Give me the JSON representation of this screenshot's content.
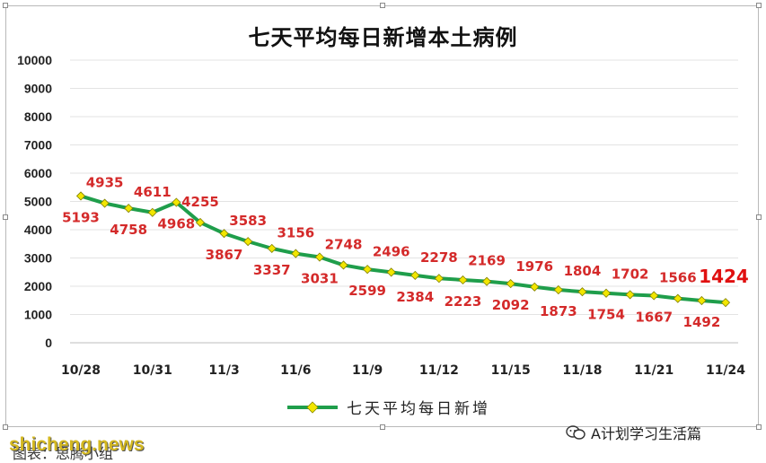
{
  "chart_data": {
    "type": "line",
    "title": "七天平均每日新增本土病例",
    "xlabel": "",
    "ylabel": "",
    "ylim": [
      0,
      10000
    ],
    "yticks": [
      0,
      1000,
      2000,
      3000,
      4000,
      5000,
      6000,
      7000,
      8000,
      9000,
      10000
    ],
    "grid": true,
    "legend_position": "bottom",
    "x_tick_labels": [
      "10/28",
      "10/31",
      "11/3",
      "11/6",
      "11/9",
      "11/12",
      "11/15",
      "11/18",
      "11/21",
      "11/24"
    ],
    "x": [
      "10/28",
      "10/29",
      "10/30",
      "10/31",
      "11/1",
      "11/2",
      "11/3",
      "11/4",
      "11/5",
      "11/6",
      "11/7",
      "11/8",
      "11/9",
      "11/10",
      "11/11",
      "11/12",
      "11/13",
      "11/14",
      "11/15",
      "11/16",
      "11/17",
      "11/18",
      "11/19",
      "11/20",
      "11/21",
      "11/22",
      "11/23",
      "11/24"
    ],
    "series": [
      {
        "name": "七天平均每日新增",
        "color": "#1f9e4b",
        "marker_color": "#f2e600",
        "values": [
          5193,
          4935,
          4758,
          4611,
          4968,
          4255,
          3867,
          3583,
          3337,
          3156,
          3031,
          2748,
          2599,
          2496,
          2384,
          2278,
          2223,
          2169,
          2092,
          1976,
          1873,
          1804,
          1754,
          1702,
          1667,
          1566,
          1492,
          1424
        ]
      }
    ],
    "label_positions": [
      "below",
      "above",
      "below",
      "above",
      "below",
      "above",
      "below",
      "above",
      "below",
      "above",
      "below",
      "above",
      "below",
      "above",
      "below",
      "above",
      "below",
      "above",
      "below",
      "above",
      "below",
      "above",
      "below",
      "above",
      "below",
      "above",
      "below",
      "above"
    ]
  },
  "watermark_left": "shicheng.news",
  "caption": "图表：思腾小组",
  "watermark_right": "A计划学习生活篇"
}
